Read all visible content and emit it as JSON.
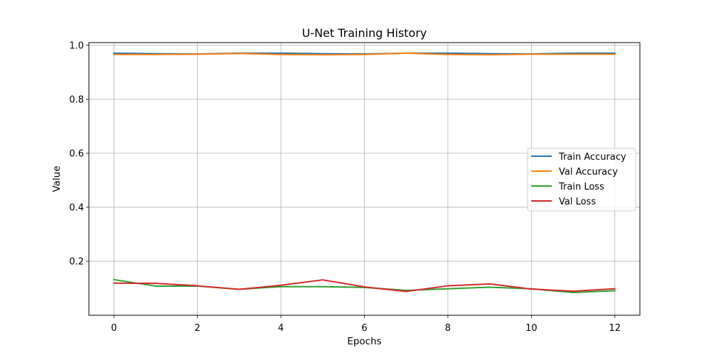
{
  "chart_data": {
    "type": "line",
    "title": "U-Net Training History",
    "xlabel": "Epochs",
    "ylabel": "Value",
    "xlim": [
      -0.6,
      12.6
    ],
    "ylim": [
      0.0,
      1.01
    ],
    "x_ticks": [
      0,
      2,
      4,
      6,
      8,
      10,
      12
    ],
    "y_ticks": [
      0.2,
      0.4,
      0.6,
      0.8,
      1.0
    ],
    "y_tick_labels": [
      "0.2",
      "0.4",
      "0.6",
      "0.8",
      "1.0"
    ],
    "grid": true,
    "legend_position": "center-right",
    "x": [
      0,
      1,
      2,
      3,
      4,
      5,
      6,
      7,
      8,
      9,
      10,
      11,
      12
    ],
    "series": [
      {
        "name": "Train Accuracy",
        "color": "#1f77b4",
        "values": [
          0.971,
          0.969,
          0.968,
          0.971,
          0.971,
          0.969,
          0.968,
          0.971,
          0.971,
          0.969,
          0.968,
          0.971,
          0.971
        ]
      },
      {
        "name": "Val Accuracy",
        "color": "#ff7f0e",
        "values": [
          0.966,
          0.966,
          0.967,
          0.97,
          0.966,
          0.965,
          0.966,
          0.971,
          0.966,
          0.965,
          0.967,
          0.967,
          0.967
        ]
      },
      {
        "name": "Train Loss",
        "color": "#2ca02c",
        "values": [
          0.132,
          0.108,
          0.108,
          0.096,
          0.106,
          0.106,
          0.103,
          0.092,
          0.098,
          0.104,
          0.098,
          0.084,
          0.091
        ]
      },
      {
        "name": "Val Loss",
        "color": "#d62728",
        "values": [
          0.119,
          0.118,
          0.109,
          0.096,
          0.111,
          0.131,
          0.105,
          0.088,
          0.109,
          0.116,
          0.097,
          0.089,
          0.098
        ]
      }
    ]
  }
}
